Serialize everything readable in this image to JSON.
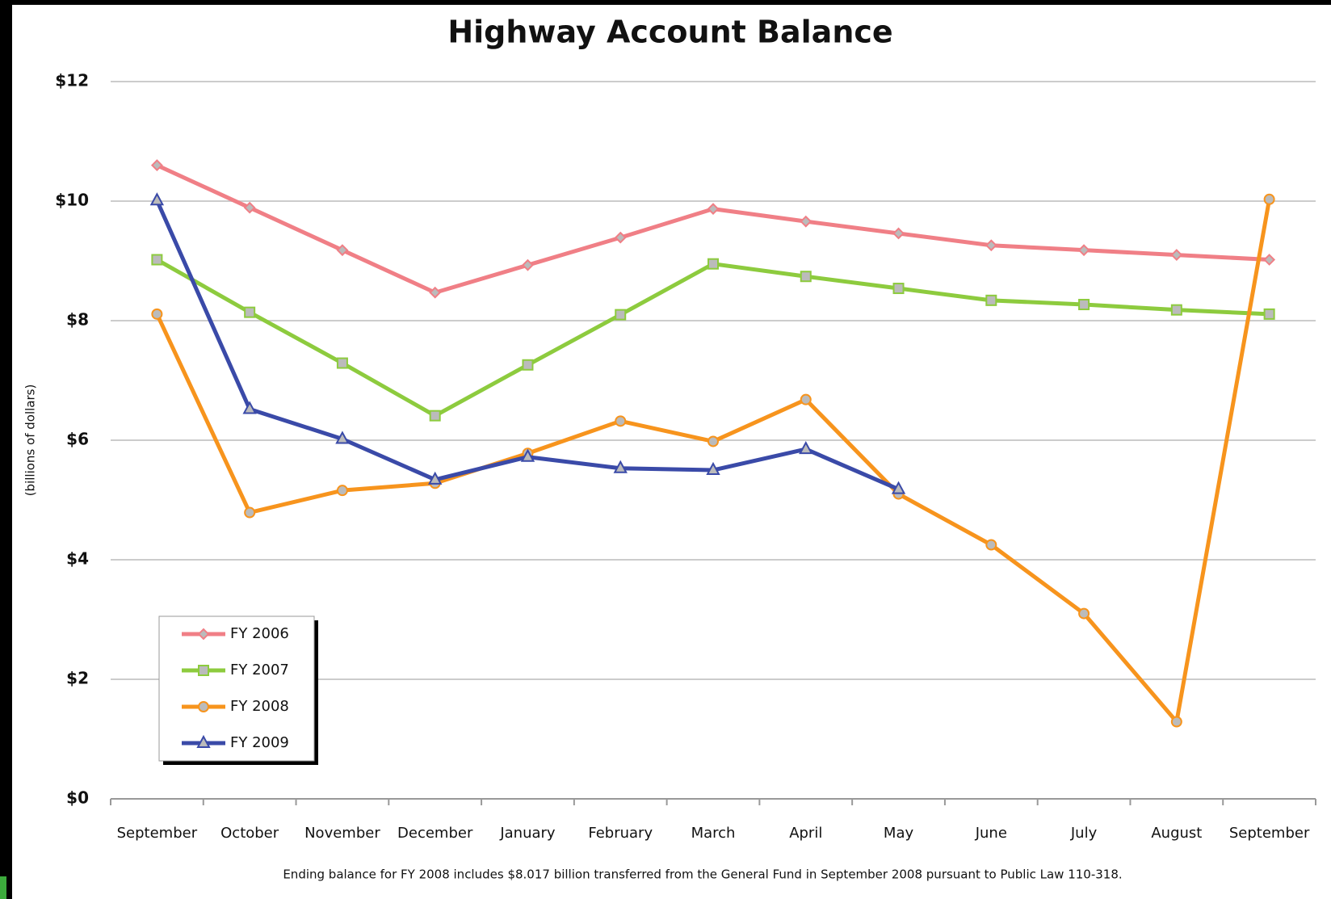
{
  "chart_data": {
    "type": "line",
    "title": "Highway Account Balance",
    "y_label": "(billions of dollars)",
    "note": "Ending balance for FY 2008 includes $8.017 billion transferred from the General Fund in September 2008 pursuant to Public Law 110-318.",
    "categories": [
      "September",
      "October",
      "November",
      "December",
      "January",
      "February",
      "March",
      "April",
      "May",
      "June",
      "July",
      "August",
      "September"
    ],
    "series": [
      {
        "name": "FY 2006",
        "color": "#f07f86",
        "marker": "diamond",
        "values": [
          10.6,
          9.89,
          9.18,
          8.47,
          8.93,
          9.39,
          9.87,
          9.66,
          9.46,
          9.26,
          9.18,
          9.1,
          9.02
        ]
      },
      {
        "name": "FY 2007",
        "color": "#8dcb3e",
        "marker": "square",
        "values": [
          9.02,
          8.14,
          7.29,
          6.41,
          7.26,
          8.1,
          8.95,
          8.74,
          8.54,
          8.34,
          8.27,
          8.18,
          8.11
        ]
      },
      {
        "name": "FY 2008",
        "color": "#f7941d",
        "marker": "circle",
        "values": [
          8.11,
          4.79,
          5.16,
          5.28,
          5.78,
          6.32,
          5.98,
          6.68,
          5.1,
          4.25,
          3.1,
          1.29,
          10.03
        ]
      },
      {
        "name": "FY 2009",
        "color": "#3a4aa8",
        "marker": "triangle",
        "values": [
          10.01,
          6.52,
          6.02,
          5.34,
          5.72,
          5.53,
          5.5,
          5.85,
          5.18,
          null,
          null,
          null,
          null
        ]
      }
    ],
    "ylim": [
      0,
      12
    ],
    "yticks": [
      {
        "value": 0,
        "label": "$0"
      },
      {
        "value": 2,
        "label": "$2"
      },
      {
        "value": 4,
        "label": "$4"
      },
      {
        "value": 6,
        "label": "$6"
      },
      {
        "value": 8,
        "label": "$8"
      },
      {
        "value": 10,
        "label": "$10"
      },
      {
        "value": 12,
        "label": "$12"
      }
    ],
    "grid": true,
    "legend": "lower left"
  }
}
